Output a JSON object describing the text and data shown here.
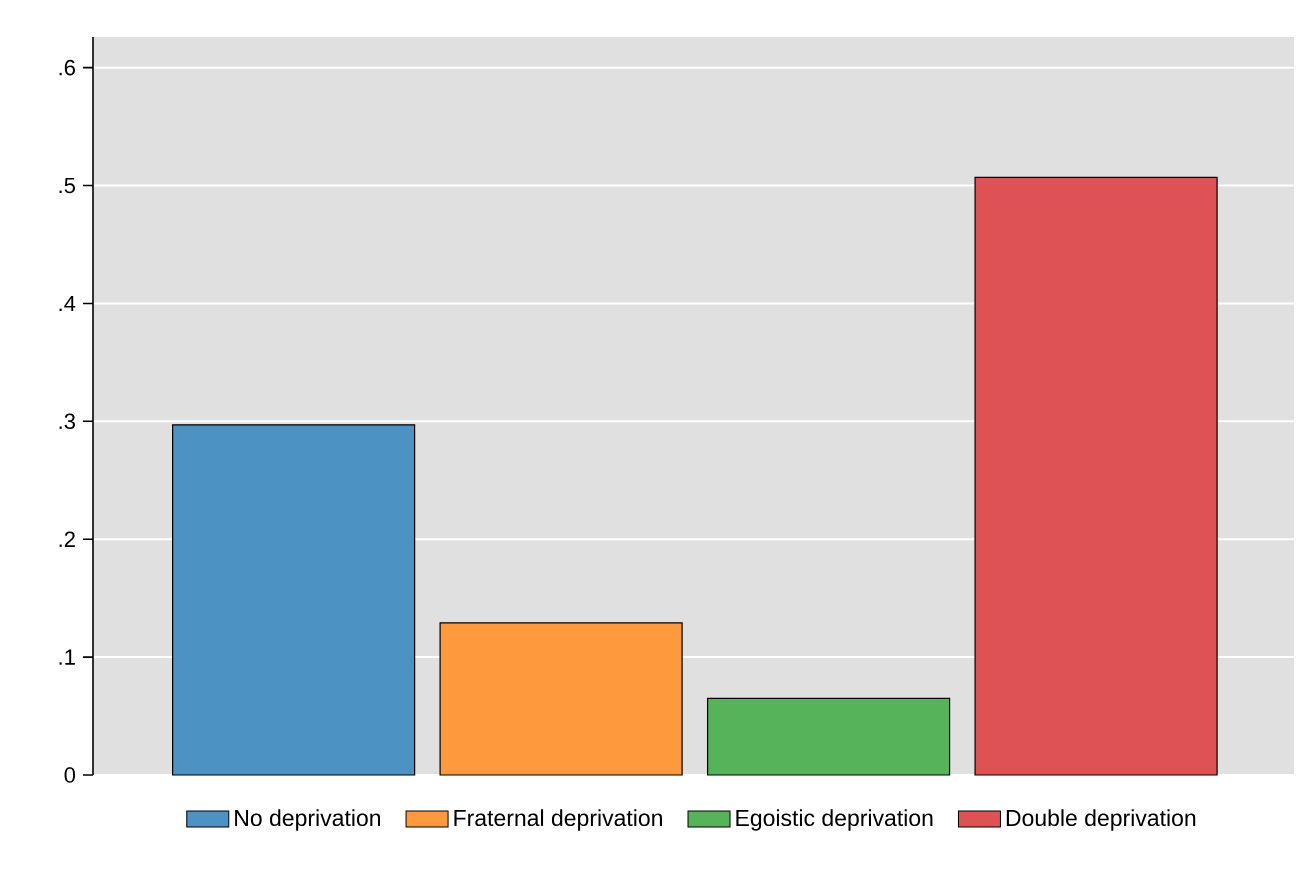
{
  "chart_data": {
    "type": "bar",
    "categories": [
      null,
      null,
      null,
      null
    ],
    "series": [
      {
        "name": "No deprivation",
        "color": "#4c92c3",
        "values": [
          0.297,
          null,
          null,
          null
        ]
      },
      {
        "name": "Fraternal deprivation",
        "color": "#ff993e",
        "values": [
          null,
          0.129,
          null,
          null
        ]
      },
      {
        "name": "Egoistic deprivation",
        "color": "#56b35a",
        "values": [
          null,
          null,
          0.065,
          null
        ]
      },
      {
        "name": "Double deprivation",
        "color": "#de5254",
        "values": [
          null,
          null,
          null,
          0.507
        ]
      }
    ],
    "ylim": [
      0,
      0.626
    ],
    "yticks": [
      {
        "value": 0,
        "label": "0"
      },
      {
        "value": 0.1,
        "label": ".1"
      },
      {
        "value": 0.2,
        "label": ".2"
      },
      {
        "value": 0.3,
        "label": ".3"
      },
      {
        "value": 0.4,
        "label": ".4"
      },
      {
        "value": 0.5,
        "label": ".5"
      },
      {
        "value": 0.6,
        "label": ".6"
      }
    ],
    "grid": "y",
    "legend": "bottom",
    "tick_labels": "y"
  }
}
